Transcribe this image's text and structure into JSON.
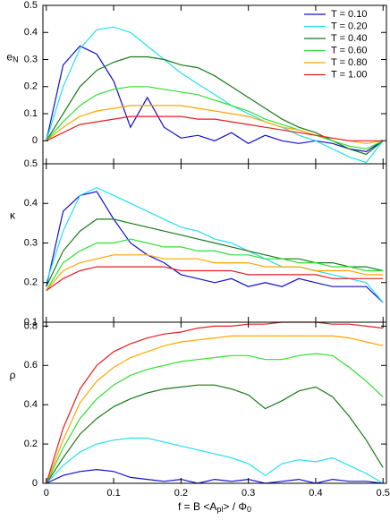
{
  "chart_data": [
    {
      "type": "line",
      "ylabel": [
        "e",
        "N"
      ],
      "legend": "upper right",
      "x": [
        0,
        0.025,
        0.05,
        0.075,
        0.1,
        0.125,
        0.15,
        0.175,
        0.2,
        0.225,
        0.25,
        0.275,
        0.3,
        0.325,
        0.35,
        0.375,
        0.4,
        0.425,
        0.45,
        0.475,
        0.5
      ],
      "xlim": [
        -0.005,
        0.505
      ],
      "xticks": [
        0,
        0.1,
        0.2,
        0.3,
        0.4,
        0.5
      ],
      "ylim": [
        -0.085,
        0.5
      ],
      "yticks": [
        0,
        0.1,
        0.2,
        0.3,
        0.4,
        0.5
      ],
      "series": [
        {
          "name": "T = 0.10",
          "color": "#1010d0",
          "values": [
            0,
            0.28,
            0.35,
            0.32,
            0.22,
            0.05,
            0.16,
            0.05,
            0.01,
            0.02,
            0.0,
            0.03,
            -0.01,
            0.02,
            0.0,
            -0.01,
            0.0,
            -0.01,
            -0.03,
            -0.04,
            0.0
          ]
        },
        {
          "name": "T = 0.20",
          "color": "#20e0f0",
          "values": [
            0,
            0.2,
            0.34,
            0.41,
            0.42,
            0.4,
            0.35,
            0.3,
            0.25,
            0.21,
            0.17,
            0.13,
            0.1,
            0.07,
            0.05,
            0.02,
            0.0,
            -0.03,
            -0.06,
            -0.08,
            0.0
          ]
        },
        {
          "name": "T = 0.40",
          "color": "#1a7a1a",
          "values": [
            0,
            0.1,
            0.2,
            0.26,
            0.29,
            0.31,
            0.31,
            0.3,
            0.28,
            0.27,
            0.24,
            0.2,
            0.16,
            0.12,
            0.08,
            0.05,
            0.03,
            0.0,
            -0.03,
            -0.05,
            0.0
          ]
        },
        {
          "name": "T = 0.60",
          "color": "#30e030",
          "values": [
            0,
            0.07,
            0.13,
            0.17,
            0.19,
            0.2,
            0.2,
            0.19,
            0.18,
            0.17,
            0.15,
            0.13,
            0.11,
            0.08,
            0.06,
            0.04,
            0.02,
            0.0,
            -0.02,
            -0.03,
            0.0
          ]
        },
        {
          "name": "T = 0.80",
          "color": "#ffa500",
          "values": [
            0,
            0.05,
            0.09,
            0.11,
            0.12,
            0.13,
            0.13,
            0.13,
            0.13,
            0.12,
            0.11,
            0.1,
            0.09,
            0.07,
            0.05,
            0.04,
            0.02,
            0.01,
            0.0,
            -0.01,
            0.0
          ]
        },
        {
          "name": "T = 1.00",
          "color": "#e02020",
          "values": [
            0,
            0.03,
            0.06,
            0.07,
            0.08,
            0.09,
            0.09,
            0.09,
            0.09,
            0.08,
            0.08,
            0.07,
            0.06,
            0.05,
            0.04,
            0.03,
            0.02,
            0.01,
            0.0,
            0.0,
            0.0
          ]
        }
      ]
    },
    {
      "type": "line",
      "ylabel": [
        "κ"
      ],
      "x": [
        0,
        0.025,
        0.05,
        0.075,
        0.1,
        0.125,
        0.15,
        0.175,
        0.2,
        0.225,
        0.25,
        0.275,
        0.3,
        0.325,
        0.35,
        0.375,
        0.4,
        0.425,
        0.45,
        0.475,
        0.5
      ],
      "xlim": [
        -0.005,
        0.505
      ],
      "xticks": [
        0,
        0.1,
        0.2,
        0.3,
        0.4,
        0.5
      ],
      "ylim": [
        0.1,
        0.5
      ],
      "yticks": [
        0.1,
        0.2,
        0.3,
        0.4,
        0.5
      ],
      "series": [
        {
          "color": "#1010d0",
          "values": [
            0.19,
            0.38,
            0.42,
            0.43,
            0.36,
            0.3,
            0.27,
            0.25,
            0.22,
            0.21,
            0.2,
            0.21,
            0.19,
            0.2,
            0.19,
            0.21,
            0.2,
            0.19,
            0.19,
            0.19,
            0.15
          ]
        },
        {
          "color": "#20e0f0",
          "values": [
            0.2,
            0.33,
            0.42,
            0.44,
            0.42,
            0.4,
            0.38,
            0.36,
            0.34,
            0.33,
            0.31,
            0.3,
            0.28,
            0.26,
            0.24,
            0.24,
            0.23,
            0.22,
            0.21,
            0.2,
            0.15
          ]
        },
        {
          "color": "#1a7a1a",
          "values": [
            0.19,
            0.28,
            0.33,
            0.36,
            0.36,
            0.35,
            0.34,
            0.33,
            0.32,
            0.31,
            0.3,
            0.29,
            0.28,
            0.27,
            0.26,
            0.26,
            0.25,
            0.25,
            0.24,
            0.24,
            0.23
          ]
        },
        {
          "color": "#30e030",
          "values": [
            0.18,
            0.25,
            0.28,
            0.3,
            0.3,
            0.31,
            0.3,
            0.29,
            0.29,
            0.28,
            0.28,
            0.27,
            0.27,
            0.26,
            0.26,
            0.25,
            0.25,
            0.24,
            0.24,
            0.23,
            0.23
          ]
        },
        {
          "color": "#ffa500",
          "values": [
            0.18,
            0.23,
            0.25,
            0.26,
            0.27,
            0.27,
            0.27,
            0.26,
            0.26,
            0.26,
            0.25,
            0.25,
            0.25,
            0.24,
            0.24,
            0.24,
            0.23,
            0.23,
            0.23,
            0.22,
            0.22
          ]
        },
        {
          "color": "#e02020",
          "values": [
            0.18,
            0.21,
            0.23,
            0.24,
            0.24,
            0.24,
            0.24,
            0.24,
            0.23,
            0.23,
            0.23,
            0.23,
            0.22,
            0.22,
            0.22,
            0.22,
            0.22,
            0.21,
            0.21,
            0.21,
            0.21
          ]
        }
      ]
    },
    {
      "type": "line",
      "ylabel": [
        "ρ"
      ],
      "xlabel": [
        "f = B <A",
        "pl",
        "> / Φ",
        "0"
      ],
      "x": [
        0,
        0.025,
        0.05,
        0.075,
        0.1,
        0.125,
        0.15,
        0.175,
        0.2,
        0.225,
        0.25,
        0.275,
        0.3,
        0.325,
        0.35,
        0.375,
        0.4,
        0.425,
        0.45,
        0.475,
        0.5
      ],
      "xlim": [
        -0.005,
        0.505
      ],
      "xticks": [
        0,
        0.1,
        0.2,
        0.3,
        0.4,
        0.5
      ],
      "ylim": [
        0,
        0.82
      ],
      "yticks": [
        0,
        0.2,
        0.4,
        0.6,
        0.8
      ],
      "series": [
        {
          "color": "#1010d0",
          "values": [
            0,
            0.04,
            0.06,
            0.07,
            0.06,
            0.03,
            0.02,
            0.01,
            0.02,
            0.0,
            0.02,
            0.01,
            0.02,
            0.0,
            0.01,
            0.02,
            0.0,
            0.02,
            0.01,
            0.01,
            0.0
          ]
        },
        {
          "color": "#20e0f0",
          "values": [
            0,
            0.09,
            0.16,
            0.2,
            0.22,
            0.23,
            0.23,
            0.21,
            0.19,
            0.17,
            0.15,
            0.13,
            0.1,
            0.04,
            0.1,
            0.12,
            0.11,
            0.13,
            0.09,
            0.05,
            0.0
          ]
        },
        {
          "color": "#1a7a1a",
          "values": [
            0,
            0.13,
            0.25,
            0.33,
            0.39,
            0.43,
            0.46,
            0.48,
            0.49,
            0.5,
            0.5,
            0.48,
            0.45,
            0.38,
            0.42,
            0.47,
            0.49,
            0.44,
            0.34,
            0.22,
            0.08
          ]
        },
        {
          "color": "#30e030",
          "values": [
            0,
            0.18,
            0.33,
            0.43,
            0.5,
            0.55,
            0.58,
            0.6,
            0.62,
            0.63,
            0.64,
            0.65,
            0.65,
            0.63,
            0.63,
            0.65,
            0.66,
            0.65,
            0.59,
            0.52,
            0.44
          ]
        },
        {
          "color": "#ffa500",
          "values": [
            0,
            0.22,
            0.41,
            0.52,
            0.59,
            0.64,
            0.67,
            0.7,
            0.72,
            0.73,
            0.74,
            0.75,
            0.75,
            0.75,
            0.75,
            0.75,
            0.75,
            0.75,
            0.74,
            0.72,
            0.7
          ]
        },
        {
          "color": "#e02020",
          "values": [
            0,
            0.28,
            0.48,
            0.6,
            0.67,
            0.71,
            0.74,
            0.76,
            0.77,
            0.79,
            0.8,
            0.8,
            0.81,
            0.81,
            0.82,
            0.82,
            0.82,
            0.81,
            0.81,
            0.8,
            0.79
          ]
        }
      ]
    }
  ]
}
